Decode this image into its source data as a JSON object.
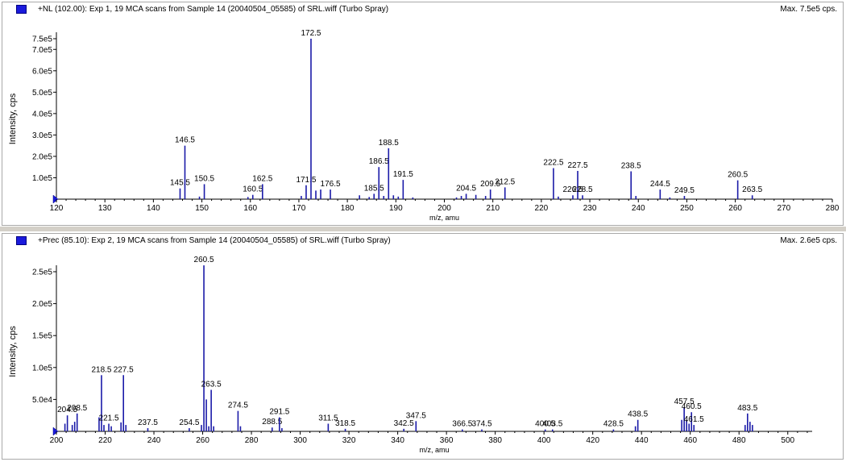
{
  "chart_data": [
    {
      "type": "bar",
      "header_title": "+NL (102.00): Exp 1, 19 MCA scans from Sample 14 (20040504_05585) of SRL.wiff (Turbo Spray)",
      "header_max": "Max. 7.5e5 cps.",
      "xlabel": "m/z, amu",
      "ylabel": "Intensity, cps",
      "xlim": [
        120,
        280
      ],
      "ylim": [
        0,
        760000
      ],
      "x_ticks": [
        120,
        130,
        140,
        150,
        160,
        170,
        180,
        190,
        200,
        210,
        220,
        230,
        240,
        250,
        260,
        270,
        280
      ],
      "y_ticks": [
        {
          "value": 100000,
          "label": "1.0e5"
        },
        {
          "value": 200000,
          "label": "2.0e5"
        },
        {
          "value": 300000,
          "label": "3.0e5"
        },
        {
          "value": 400000,
          "label": "4.0e5"
        },
        {
          "value": 500000,
          "label": "5.0e5"
        },
        {
          "value": 600000,
          "label": "6.0e5"
        },
        {
          "value": 700000,
          "label": "7.0e5"
        },
        {
          "value": 750000,
          "label": "7.5e5"
        }
      ],
      "peaks": [
        {
          "x": 145.5,
          "y": 50000,
          "label": "145.5"
        },
        {
          "x": 146.5,
          "y": 250000,
          "label": "146.5"
        },
        {
          "x": 149.5,
          "y": 12000
        },
        {
          "x": 150.5,
          "y": 70000,
          "label": "150.5"
        },
        {
          "x": 159.5,
          "y": 10000
        },
        {
          "x": 160.5,
          "y": 20000,
          "label": "160.5"
        },
        {
          "x": 162.5,
          "y": 70000,
          "label": "162.5"
        },
        {
          "x": 170.5,
          "y": 15000
        },
        {
          "x": 171.5,
          "y": 65000,
          "label": "171.5"
        },
        {
          "x": 172.5,
          "y": 750000,
          "label": "172.5"
        },
        {
          "x": 173.5,
          "y": 40000
        },
        {
          "x": 174.5,
          "y": 45000
        },
        {
          "x": 176.5,
          "y": 45000,
          "label": "176.5"
        },
        {
          "x": 182.5,
          "y": 18000
        },
        {
          "x": 184.5,
          "y": 10000
        },
        {
          "x": 185.5,
          "y": 25000,
          "label": "185.5"
        },
        {
          "x": 186.5,
          "y": 150000,
          "label": "186.5"
        },
        {
          "x": 187.5,
          "y": 15000
        },
        {
          "x": 188.5,
          "y": 238000,
          "label": "188.5"
        },
        {
          "x": 189.5,
          "y": 18000
        },
        {
          "x": 190.5,
          "y": 12000
        },
        {
          "x": 191.5,
          "y": 90000,
          "label": "191.5"
        },
        {
          "x": 193.5,
          "y": 8000
        },
        {
          "x": 202.5,
          "y": 8000
        },
        {
          "x": 203.5,
          "y": 15000
        },
        {
          "x": 204.5,
          "y": 25000,
          "label": "204.5"
        },
        {
          "x": 206.5,
          "y": 20000
        },
        {
          "x": 208.5,
          "y": 15000
        },
        {
          "x": 209.5,
          "y": 45000,
          "label": "209.5"
        },
        {
          "x": 212.5,
          "y": 55000,
          "label": "212.5"
        },
        {
          "x": 222.5,
          "y": 145000,
          "label": "222.5"
        },
        {
          "x": 223.5,
          "y": 12000
        },
        {
          "x": 226.5,
          "y": 18000,
          "label": "226.5"
        },
        {
          "x": 227.5,
          "y": 132000,
          "label": "227.5"
        },
        {
          "x": 228.5,
          "y": 18000,
          "label": "228.5"
        },
        {
          "x": 238.5,
          "y": 130000,
          "label": "238.5"
        },
        {
          "x": 239.5,
          "y": 15000
        },
        {
          "x": 244.5,
          "y": 45000,
          "label": "244.5"
        },
        {
          "x": 246.5,
          "y": 8000
        },
        {
          "x": 249.5,
          "y": 15000,
          "label": "249.5"
        },
        {
          "x": 260.5,
          "y": 88000,
          "label": "260.5"
        },
        {
          "x": 263.5,
          "y": 18000,
          "label": "263.5"
        }
      ]
    },
    {
      "type": "bar",
      "header_title": "+Prec (85.10): Exp 2, 19 MCA scans from Sample 14 (20040504_05585) of SRL.wiff (Turbo Spray)",
      "header_max": "Max. 2.6e5 cps.",
      "xlabel": "m/z, amu",
      "ylabel": "Intensity, cps",
      "xlim": [
        200,
        510
      ],
      "ylim": [
        0,
        265000
      ],
      "x_ticks": [
        200,
        220,
        240,
        260,
        280,
        300,
        320,
        340,
        360,
        380,
        400,
        420,
        440,
        460,
        480,
        500
      ],
      "y_ticks": [
        {
          "value": 50000,
          "label": "5.0e4"
        },
        {
          "value": 100000,
          "label": "1.0e5"
        },
        {
          "value": 150000,
          "label": "1.5e5"
        },
        {
          "value": 200000,
          "label": "2.0e5"
        },
        {
          "value": 250000,
          "label": "2.5e5"
        }
      ],
      "peaks": [
        {
          "x": 203.5,
          "y": 12000
        },
        {
          "x": 204.5,
          "y": 25000,
          "label": "204.5"
        },
        {
          "x": 206.5,
          "y": 10000
        },
        {
          "x": 207.5,
          "y": 15000
        },
        {
          "x": 208.5,
          "y": 28000,
          "label": "208.5"
        },
        {
          "x": 217.5,
          "y": 22000
        },
        {
          "x": 218.5,
          "y": 88000,
          "label": "218.5"
        },
        {
          "x": 219.5,
          "y": 10000
        },
        {
          "x": 221.5,
          "y": 12000,
          "label": "221.5"
        },
        {
          "x": 222.5,
          "y": 8000
        },
        {
          "x": 226.5,
          "y": 14000
        },
        {
          "x": 227.5,
          "y": 88000,
          "label": "227.5"
        },
        {
          "x": 228.5,
          "y": 10000
        },
        {
          "x": 237.5,
          "y": 5000,
          "label": "237.5"
        },
        {
          "x": 254.5,
          "y": 5000,
          "label": "254.5"
        },
        {
          "x": 259.5,
          "y": 10000
        },
        {
          "x": 260.5,
          "y": 260000,
          "label": "260.5"
        },
        {
          "x": 261.5,
          "y": 50000
        },
        {
          "x": 262.5,
          "y": 8000
        },
        {
          "x": 263.5,
          "y": 65000,
          "label": "263.5"
        },
        {
          "x": 264.5,
          "y": 8000
        },
        {
          "x": 274.5,
          "y": 32000,
          "label": "274.5"
        },
        {
          "x": 275.5,
          "y": 8000
        },
        {
          "x": 288.5,
          "y": 6000,
          "label": "288.5"
        },
        {
          "x": 291.5,
          "y": 22000,
          "label": "291.5"
        },
        {
          "x": 292.5,
          "y": 5000
        },
        {
          "x": 311.5,
          "y": 12000,
          "label": "311.5"
        },
        {
          "x": 318.5,
          "y": 4000,
          "label": "318.5"
        },
        {
          "x": 342.5,
          "y": 4000,
          "label": "342.5"
        },
        {
          "x": 347.5,
          "y": 16000,
          "label": "347.5"
        },
        {
          "x": 366.5,
          "y": 3000,
          "label": "366.5"
        },
        {
          "x": 374.5,
          "y": 3000,
          "label": "374.5"
        },
        {
          "x": 400.5,
          "y": 3000,
          "label": "400.5"
        },
        {
          "x": 403.5,
          "y": 3000,
          "label": "403.5"
        },
        {
          "x": 428.5,
          "y": 3000,
          "label": "428.5"
        },
        {
          "x": 437.5,
          "y": 8000
        },
        {
          "x": 438.5,
          "y": 18000,
          "label": "438.5"
        },
        {
          "x": 456.5,
          "y": 18000
        },
        {
          "x": 457.5,
          "y": 38000,
          "label": "457.5"
        },
        {
          "x": 458.5,
          "y": 18000
        },
        {
          "x": 459.5,
          "y": 12000
        },
        {
          "x": 460.5,
          "y": 30000,
          "label": "460.5"
        },
        {
          "x": 461.5,
          "y": 10000,
          "label": "461.5"
        },
        {
          "x": 482.5,
          "y": 10000
        },
        {
          "x": 483.5,
          "y": 28000,
          "label": "483.5"
        },
        {
          "x": 484.5,
          "y": 15000
        },
        {
          "x": 485.5,
          "y": 10000
        }
      ]
    }
  ]
}
